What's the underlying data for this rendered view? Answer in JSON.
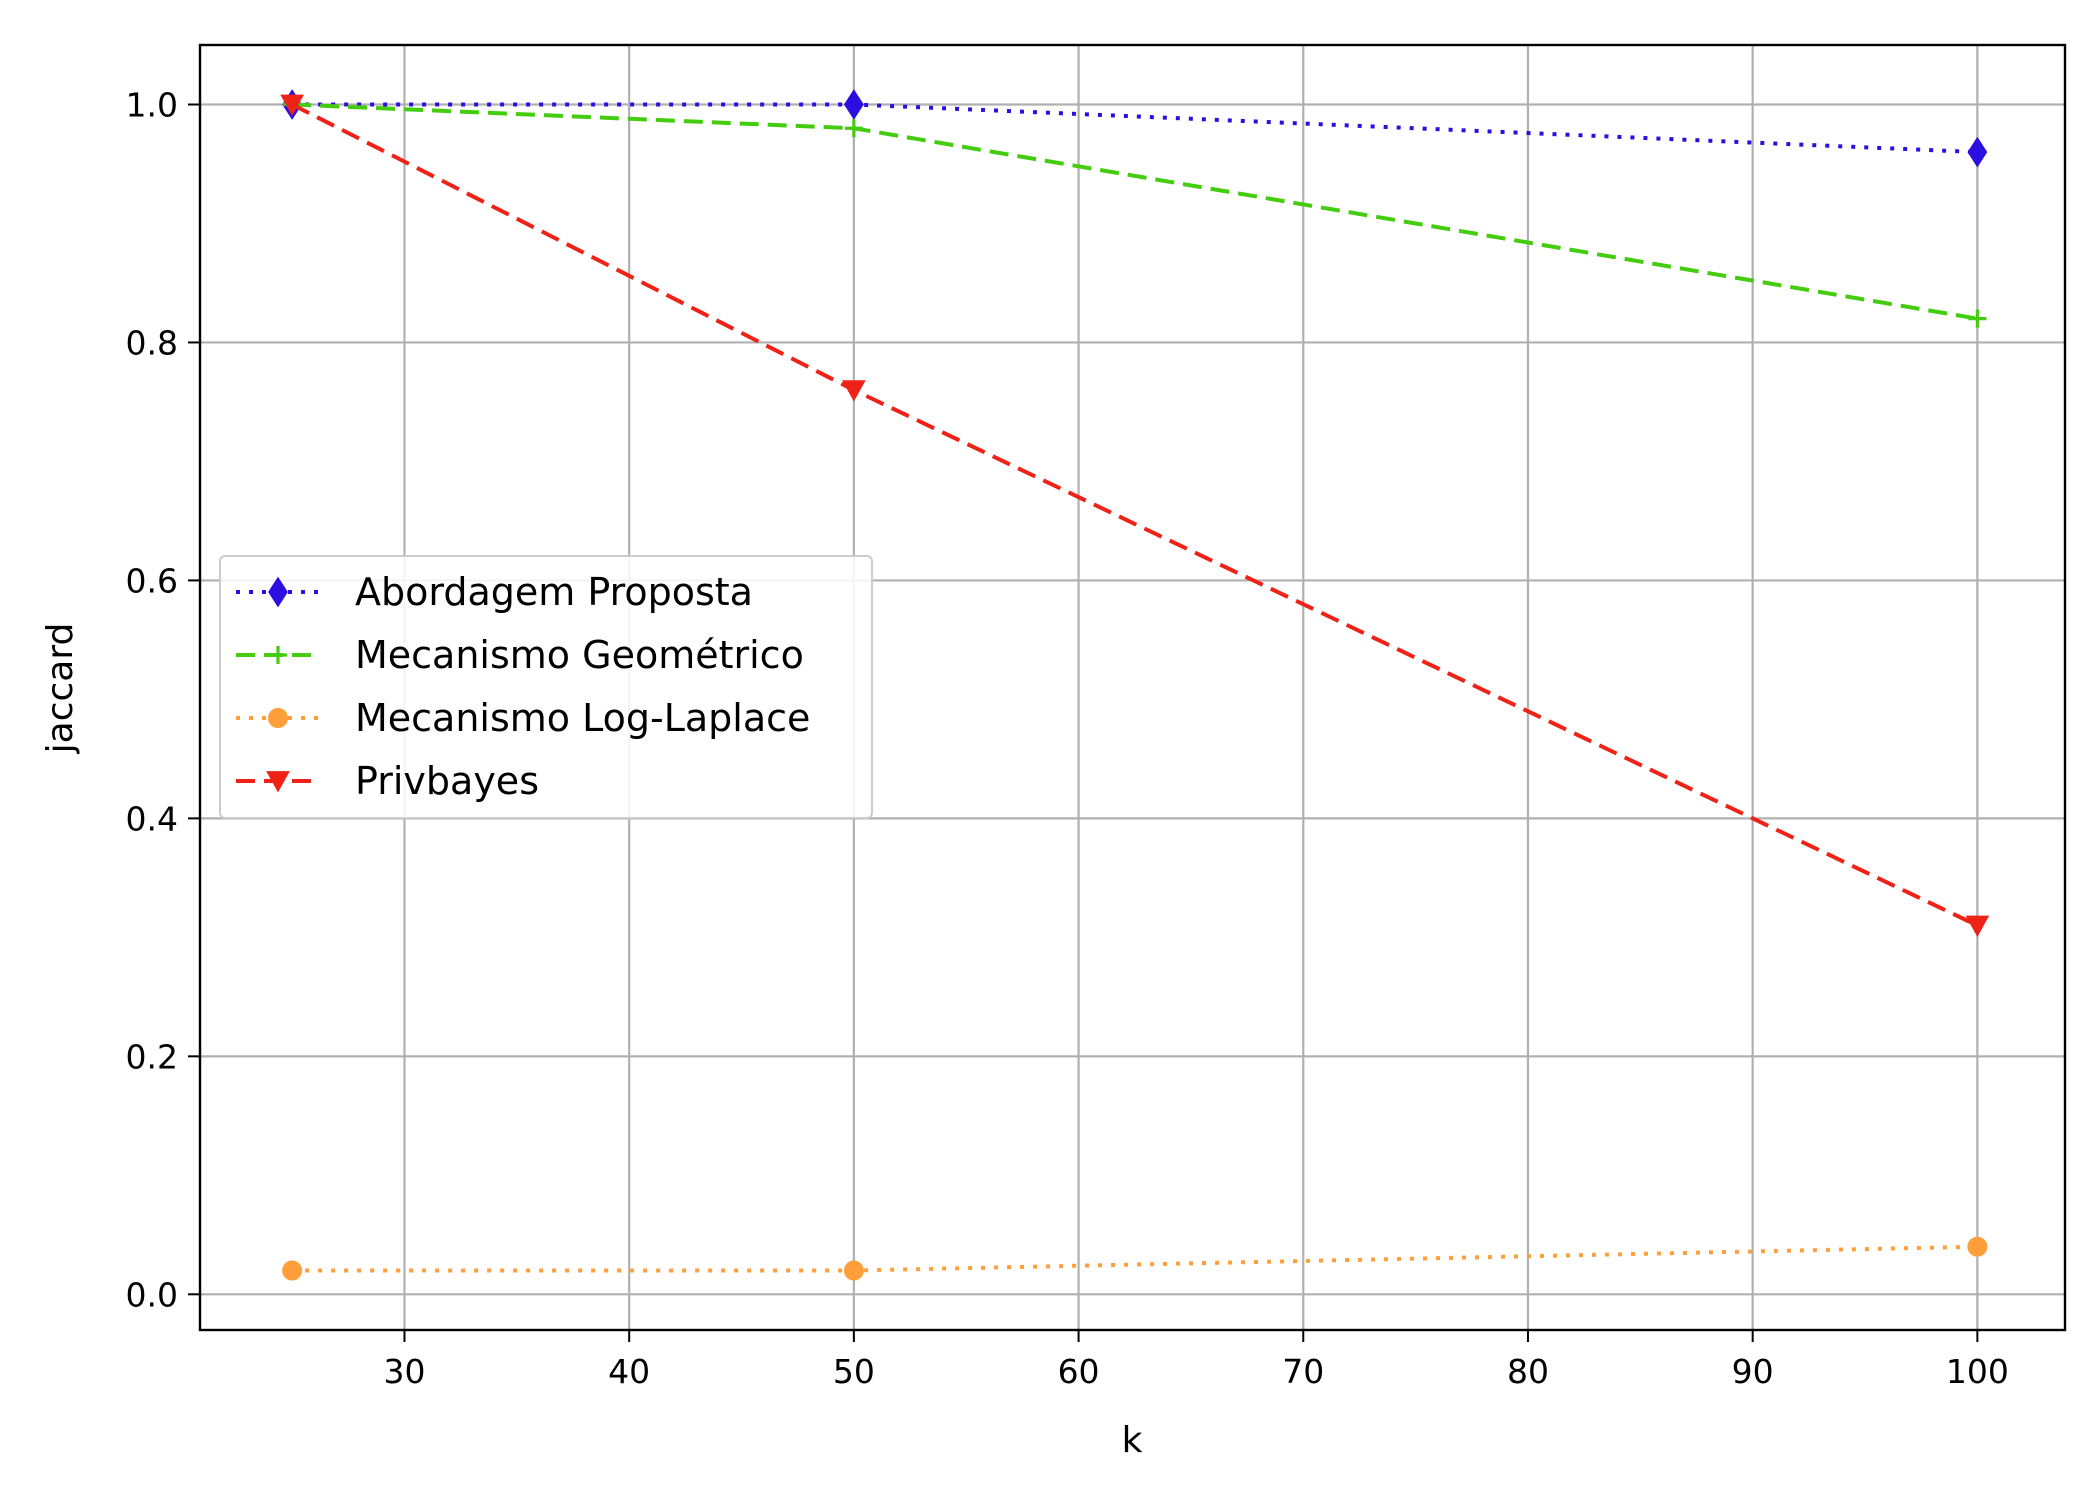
{
  "chart_data": {
    "type": "line",
    "title": "",
    "xlabel": "k",
    "ylabel": "jaccard",
    "x": [
      25,
      50,
      100
    ],
    "xlim": [
      20.9,
      103.9
    ],
    "ylim": [
      -0.03,
      1.05
    ],
    "xticks": [
      30,
      40,
      50,
      60,
      70,
      80,
      90,
      100
    ],
    "yticks": [
      0.0,
      0.2,
      0.4,
      0.6,
      0.8,
      1.0
    ],
    "xtick_labels": [
      "30",
      "40",
      "50",
      "60",
      "70",
      "80",
      "90",
      "100"
    ],
    "ytick_labels": [
      "0.0",
      "0.2",
      "0.4",
      "0.6",
      "0.8",
      "1.0"
    ],
    "grid": true,
    "legend_position": "center-left",
    "series": [
      {
        "name": "Abordagem Proposta",
        "values": [
          1.0,
          1.0,
          0.96
        ],
        "color": "#2a0fe0",
        "linestyle": "dotted",
        "marker": "thin-diamond"
      },
      {
        "name": "Mecanismo Geométrico",
        "values": [
          1.0,
          0.98,
          0.82
        ],
        "color": "#44cc0e",
        "linestyle": "dashed",
        "marker": "plus"
      },
      {
        "name": "Mecanismo Log-Laplace",
        "values": [
          0.02,
          0.02,
          0.04
        ],
        "color": "#ff9f3b",
        "linestyle": "dotted",
        "marker": "circle"
      },
      {
        "name": "Privbayes",
        "values": [
          1.0,
          0.76,
          0.31
        ],
        "color": "#ee2216",
        "linestyle": "dashed",
        "marker": "triangle-down"
      }
    ]
  }
}
